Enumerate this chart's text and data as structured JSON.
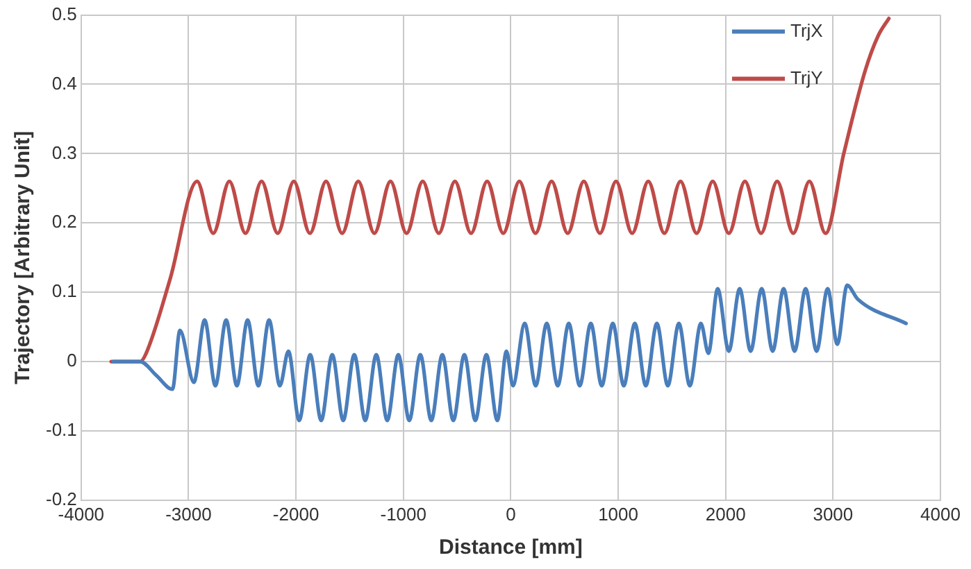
{
  "chart_data": {
    "type": "line",
    "xlabel": "Distance [mm]",
    "ylabel": "Trajectory [Arbitrary Unit]",
    "xlim": [
      -4000,
      4000
    ],
    "xticks": [
      -4000,
      -3000,
      -2000,
      -1000,
      0,
      1000,
      2000,
      3000,
      4000
    ],
    "ylim": [
      -0.2,
      0.5
    ],
    "yticks": [
      -0.2,
      -0.1,
      0,
      0.1,
      0.2,
      0.3,
      0.4,
      0.5
    ],
    "grid": true,
    "legend": "top right",
    "marker": "none",
    "line_style": "solid",
    "series": [
      {
        "name": "TrjX",
        "color": "#4a7ebb",
        "x": [
          -3700,
          -3450,
          -3300,
          -3150,
          -3080,
          -2950,
          -2850,
          -2750,
          -2650,
          -2550,
          -2450,
          -2350,
          -2250,
          -2150,
          -2070,
          -1970,
          -1867,
          -1765,
          -1662,
          -1560,
          -1457,
          -1355,
          -1252,
          -1150,
          -1047,
          -945,
          -842,
          -740,
          -637,
          -535,
          -432,
          -330,
          -227,
          -125,
          -40,
          20,
          130,
          232,
          335,
          437,
          540,
          642,
          745,
          847,
          950,
          1052,
          1155,
          1257,
          1360,
          1462,
          1565,
          1667,
          1770,
          1840,
          1926,
          2030,
          2131,
          2233,
          2336,
          2438,
          2540,
          2642,
          2745,
          2847,
          2950,
          3040,
          3131,
          3230,
          3680
        ],
        "values": [
          0,
          0,
          -0.02,
          -0.04,
          0.045,
          -0.03,
          0.06,
          -0.035,
          0.06,
          -0.035,
          0.06,
          -0.035,
          0.06,
          -0.035,
          0.015,
          -0.085,
          0.01,
          -0.085,
          0.01,
          -0.085,
          0.01,
          -0.085,
          0.01,
          -0.085,
          0.01,
          -0.085,
          0.01,
          -0.085,
          0.01,
          -0.085,
          0.01,
          -0.085,
          0.01,
          -0.085,
          0.015,
          -0.035,
          0.055,
          -0.035,
          0.055,
          -0.035,
          0.055,
          -0.035,
          0.055,
          -0.035,
          0.055,
          -0.035,
          0.055,
          -0.035,
          0.055,
          -0.035,
          0.055,
          -0.035,
          0.055,
          0.012,
          0.105,
          0.015,
          0.105,
          0.015,
          0.105,
          0.015,
          0.105,
          0.015,
          0.105,
          0.015,
          0.105,
          0.025,
          0.11,
          0.09,
          0.055
        ]
      },
      {
        "name": "TrjY",
        "color": "#be4b48",
        "x": [
          -3720,
          -3450,
          -3400,
          -3170,
          -2920,
          -2770,
          -2620,
          -2470,
          -2320,
          -2170,
          -2020,
          -1870,
          -1720,
          -1570,
          -1420,
          -1270,
          -1120,
          -970,
          -820,
          -670,
          -520,
          -370,
          -220,
          -70,
          80,
          230,
          380,
          530,
          680,
          830,
          980,
          1130,
          1280,
          1430,
          1580,
          1730,
          1880,
          2030,
          2180,
          2330,
          2480,
          2630,
          2780,
          2930,
          3100,
          3300,
          3420,
          3520
        ],
        "values": [
          0,
          0,
          0.01,
          0.12,
          0.26,
          0.185,
          0.26,
          0.185,
          0.26,
          0.185,
          0.26,
          0.185,
          0.26,
          0.185,
          0.26,
          0.185,
          0.26,
          0.185,
          0.26,
          0.185,
          0.26,
          0.185,
          0.26,
          0.185,
          0.26,
          0.185,
          0.26,
          0.185,
          0.26,
          0.185,
          0.26,
          0.185,
          0.26,
          0.185,
          0.26,
          0.185,
          0.26,
          0.185,
          0.26,
          0.185,
          0.26,
          0.185,
          0.26,
          0.185,
          0.3,
          0.42,
          0.47,
          0.495
        ]
      }
    ]
  }
}
